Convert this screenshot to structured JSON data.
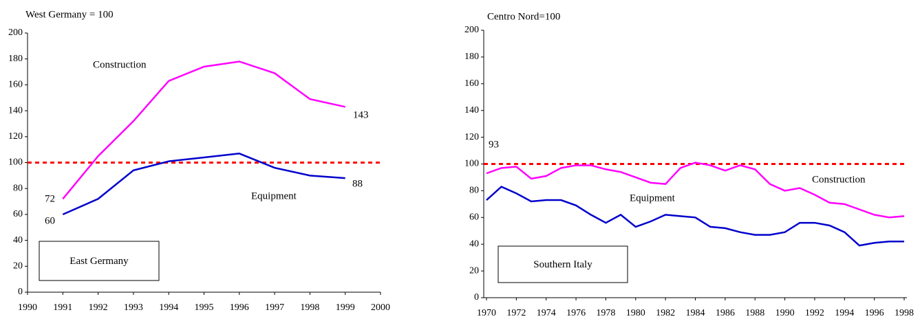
{
  "chart_data": [
    {
      "type": "line",
      "title": "West Germany = 100",
      "panel_label": "East Germany",
      "x": [
        1991,
        1992,
        1993,
        1994,
        1995,
        1996,
        1997,
        1998,
        1999
      ],
      "series": [
        {
          "name": "Construction",
          "color": "#ff00ff",
          "values": [
            72,
            105,
            132,
            163,
            174,
            178,
            169,
            149,
            143
          ]
        },
        {
          "name": "Equipment",
          "color": "#0000cc",
          "values": [
            60,
            72,
            94,
            101,
            104,
            107,
            96,
            90,
            88
          ]
        }
      ],
      "reference_line": 100,
      "reference_color": "#ff0000",
      "annotations": [
        "72",
        "60",
        "143",
        "88"
      ],
      "xlim": [
        1990,
        2000
      ],
      "xticks": [
        1990,
        1991,
        1992,
        1993,
        1994,
        1995,
        1996,
        1997,
        1998,
        1999,
        2000
      ],
      "ylim": [
        0,
        200
      ],
      "yticks": [
        0,
        20,
        40,
        60,
        80,
        100,
        120,
        140,
        160,
        180,
        200
      ],
      "grid": false
    },
    {
      "type": "line",
      "title": "Centro Nord=100",
      "panel_label": "Southern Italy",
      "x": [
        1970,
        1971,
        1972,
        1973,
        1974,
        1975,
        1976,
        1977,
        1978,
        1979,
        1980,
        1981,
        1982,
        1983,
        1984,
        1985,
        1986,
        1987,
        1988,
        1989,
        1990,
        1991,
        1992,
        1993,
        1994,
        1995,
        1996,
        1997,
        1998
      ],
      "series": [
        {
          "name": "Construction",
          "color": "#ff00ff",
          "values": [
            93,
            97,
            98,
            89,
            91,
            97,
            99,
            99,
            96,
            94,
            90,
            86,
            85,
            97,
            101,
            99,
            95,
            99,
            96,
            85,
            80,
            82,
            77,
            71,
            70,
            66,
            62,
            60,
            61
          ]
        },
        {
          "name": "Equipment",
          "color": "#0000cc",
          "values": [
            73,
            83,
            78,
            72,
            73,
            73,
            69,
            62,
            56,
            62,
            53,
            57,
            62,
            61,
            60,
            53,
            52,
            49,
            47,
            47,
            49,
            56,
            56,
            54,
            49,
            39,
            41,
            42,
            42
          ]
        }
      ],
      "reference_line": 100,
      "reference_color": "#ff0000",
      "annotations": [
        "93"
      ],
      "xlim": [
        1970,
        1998
      ],
      "xticks": [
        1970,
        1972,
        1974,
        1976,
        1978,
        1980,
        1982,
        1984,
        1986,
        1988,
        1990,
        1992,
        1994,
        1996,
        1998
      ],
      "ylim": [
        0,
        200
      ],
      "yticks": [
        0,
        20,
        40,
        60,
        80,
        100,
        120,
        140,
        160,
        180,
        200
      ],
      "grid": false
    }
  ]
}
